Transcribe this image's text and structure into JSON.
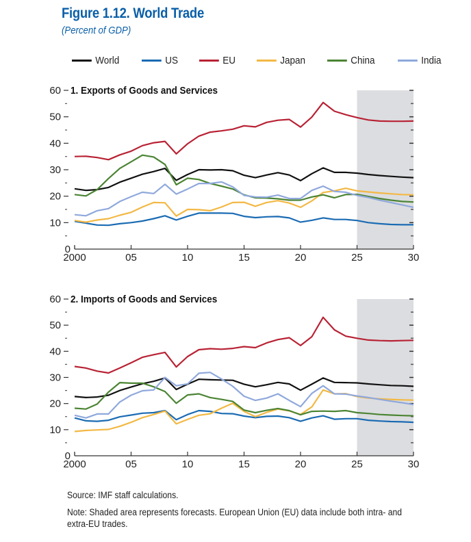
{
  "figure": {
    "title": "Figure 1.12.  World Trade",
    "subtitle": "(Percent of GDP)",
    "source": "Source: IMF staff calculations.",
    "note": "Note: Shaded area represents forecasts. European Union (EU) data include both intra- and extra-EU trades."
  },
  "legend": [
    {
      "name": "World",
      "color": "#111111"
    },
    {
      "name": "US",
      "color": "#1a6bb3"
    },
    {
      "name": "EU",
      "color": "#b82234"
    },
    {
      "name": "Japan",
      "color": "#f3b843"
    },
    {
      "name": "China",
      "color": "#4b8433"
    },
    {
      "name": "India",
      "color": "#8fa8dc"
    }
  ],
  "chart_data": [
    {
      "type": "line",
      "title": "1. Exports of Goods and Services",
      "xlabel": "",
      "ylabel": "Percent of GDP",
      "x": [
        2000,
        2001,
        2002,
        2003,
        2004,
        2005,
        2006,
        2007,
        2008,
        2009,
        2010,
        2011,
        2012,
        2013,
        2014,
        2015,
        2016,
        2017,
        2018,
        2019,
        2020,
        2021,
        2022,
        2023,
        2024,
        2025,
        2026,
        2027,
        2028,
        2029,
        2030
      ],
      "xlim": [
        2000,
        2030
      ],
      "ylim": [
        0,
        60
      ],
      "x_tick_labels": [
        "2000",
        "05",
        "10",
        "15",
        "20",
        "25",
        "30"
      ],
      "x_ticks": [
        2000,
        2005,
        2010,
        2015,
        2020,
        2025,
        2030
      ],
      "y_tick_labels": [
        "0",
        "10",
        "20",
        "30",
        "40",
        "50",
        "60"
      ],
      "y_ticks": [
        0,
        10,
        20,
        30,
        40,
        50,
        60
      ],
      "forecast_shading": [
        2025,
        2030
      ],
      "grid": false,
      "legend_position": "top",
      "series": [
        {
          "name": "World",
          "values": [
            22.8,
            22.2,
            22.5,
            23.3,
            25.3,
            26.8,
            28.3,
            29.3,
            30.5,
            26.0,
            28.2,
            30.0,
            29.9,
            30.0,
            29.6,
            27.9,
            27.0,
            28.0,
            28.9,
            28.0,
            25.9,
            28.5,
            30.7,
            29.0,
            29.0,
            28.7,
            28.2,
            27.8,
            27.5,
            27.2,
            27.0
          ]
        },
        {
          "name": "US",
          "values": [
            10.5,
            9.8,
            9.1,
            9.0,
            9.6,
            10.0,
            10.6,
            11.5,
            12.6,
            11.0,
            12.4,
            13.6,
            13.6,
            13.6,
            13.5,
            12.4,
            11.9,
            12.2,
            12.3,
            11.8,
            10.2,
            10.9,
            11.8,
            11.2,
            11.2,
            10.8,
            10.0,
            9.6,
            9.3,
            9.2,
            9.2
          ]
        },
        {
          "name": "EU",
          "values": [
            35.0,
            35.1,
            34.6,
            33.8,
            35.6,
            37.0,
            39.1,
            40.2,
            40.7,
            36.0,
            39.8,
            42.7,
            44.2,
            44.7,
            45.3,
            46.6,
            46.2,
            47.9,
            48.7,
            49.0,
            46.1,
            49.9,
            55.4,
            52.1,
            50.8,
            49.7,
            48.8,
            48.4,
            48.3,
            48.3,
            48.4
          ]
        },
        {
          "name": "Japan",
          "values": [
            10.8,
            10.2,
            11.0,
            11.5,
            12.8,
            13.9,
            15.9,
            17.6,
            17.5,
            12.5,
            15.0,
            14.9,
            14.5,
            15.9,
            17.6,
            17.7,
            16.2,
            17.6,
            18.3,
            17.4,
            15.8,
            18.2,
            21.4,
            22.0,
            23.0,
            22.0,
            21.6,
            21.2,
            20.9,
            20.6,
            20.5
          ]
        },
        {
          "name": "China",
          "values": [
            20.6,
            20.1,
            22.5,
            26.7,
            30.5,
            33.0,
            35.5,
            34.8,
            32.0,
            24.3,
            26.8,
            26.3,
            24.8,
            23.8,
            22.7,
            20.5,
            19.4,
            19.3,
            19.0,
            18.5,
            18.5,
            19.7,
            20.5,
            19.4,
            20.6,
            20.7,
            19.9,
            19.1,
            18.5,
            18.0,
            17.8
          ]
        },
        {
          "name": "India",
          "values": [
            13.0,
            12.6,
            14.5,
            15.3,
            18.0,
            19.8,
            21.5,
            21.0,
            24.5,
            20.8,
            22.7,
            24.8,
            24.8,
            25.4,
            23.5,
            20.3,
            19.7,
            19.6,
            20.4,
            19.1,
            19.1,
            22.2,
            23.8,
            21.8,
            21.5,
            20.3,
            19.5,
            18.5,
            17.6,
            16.7,
            15.8
          ]
        }
      ]
    },
    {
      "type": "line",
      "title": "2. Imports of Goods and Services",
      "xlabel": "",
      "ylabel": "Percent of GDP",
      "x": [
        2000,
        2001,
        2002,
        2003,
        2004,
        2005,
        2006,
        2007,
        2008,
        2009,
        2010,
        2011,
        2012,
        2013,
        2014,
        2015,
        2016,
        2017,
        2018,
        2019,
        2020,
        2021,
        2022,
        2023,
        2024,
        2025,
        2026,
        2027,
        2028,
        2029,
        2030
      ],
      "xlim": [
        2000,
        2030
      ],
      "ylim": [
        0,
        60
      ],
      "x_tick_labels": [
        "2000",
        "05",
        "10",
        "15",
        "20",
        "25",
        "30"
      ],
      "x_ticks": [
        2000,
        2005,
        2010,
        2015,
        2020,
        2025,
        2030
      ],
      "y_tick_labels": [
        "0",
        "10",
        "20",
        "30",
        "40",
        "50",
        "60"
      ],
      "y_ticks": [
        0,
        10,
        20,
        30,
        40,
        50,
        60
      ],
      "forecast_shading": [
        2025,
        2030
      ],
      "grid": false,
      "legend_position": "top",
      "series": [
        {
          "name": "World",
          "values": [
            22.7,
            22.3,
            22.5,
            23.2,
            25.0,
            26.3,
            27.6,
            28.5,
            29.8,
            25.4,
            27.4,
            29.3,
            29.1,
            29.0,
            28.9,
            27.4,
            26.4,
            27.2,
            28.1,
            27.5,
            25.1,
            27.4,
            29.8,
            28.1,
            28.0,
            27.9,
            27.5,
            27.2,
            26.9,
            26.8,
            26.6
          ]
        },
        {
          "name": "US",
          "values": [
            14.5,
            13.4,
            13.2,
            13.6,
            14.9,
            15.6,
            16.3,
            16.5,
            17.3,
            13.8,
            15.8,
            17.3,
            17.0,
            16.2,
            16.1,
            15.2,
            14.6,
            15.1,
            15.2,
            14.6,
            13.2,
            14.5,
            15.3,
            14.0,
            14.2,
            14.2,
            13.6,
            13.3,
            13.1,
            13.0,
            12.8
          ]
        },
        {
          "name": "EU",
          "values": [
            34.2,
            33.6,
            32.4,
            31.7,
            33.6,
            35.6,
            37.7,
            38.7,
            39.6,
            34.0,
            38.0,
            40.6,
            41.0,
            40.8,
            41.1,
            41.8,
            41.4,
            43.2,
            44.5,
            45.2,
            42.2,
            45.6,
            53.0,
            48.2,
            45.8,
            45.0,
            44.3,
            44.1,
            44.0,
            44.1,
            44.2
          ]
        },
        {
          "name": "Japan",
          "values": [
            9.3,
            9.7,
            9.9,
            10.1,
            11.3,
            12.8,
            14.6,
            15.8,
            17.1,
            12.2,
            13.9,
            15.5,
            16.1,
            18.2,
            20.1,
            17.0,
            15.0,
            16.6,
            17.9,
            17.2,
            15.8,
            18.7,
            25.2,
            23.7,
            23.8,
            22.7,
            22.1,
            21.8,
            21.6,
            21.4,
            21.3
          ]
        },
        {
          "name": "China",
          "values": [
            18.2,
            17.9,
            19.8,
            24.4,
            28.0,
            27.8,
            27.8,
            26.4,
            24.6,
            20.1,
            23.3,
            23.7,
            22.3,
            21.6,
            20.8,
            17.5,
            16.5,
            17.4,
            18.1,
            17.3,
            15.7,
            17.0,
            17.1,
            17.0,
            17.3,
            16.5,
            16.2,
            15.8,
            15.6,
            15.4,
            15.3
          ]
        },
        {
          "name": "India",
          "values": [
            15.5,
            14.5,
            16.0,
            16.0,
            20.6,
            23.2,
            24.9,
            25.2,
            30.0,
            26.8,
            27.5,
            31.6,
            31.9,
            29.4,
            26.6,
            22.8,
            21.2,
            22.1,
            23.7,
            21.2,
            18.8,
            23.9,
            26.8,
            23.7,
            23.6,
            22.9,
            22.3,
            21.6,
            20.9,
            20.3,
            19.6
          ]
        }
      ]
    }
  ]
}
